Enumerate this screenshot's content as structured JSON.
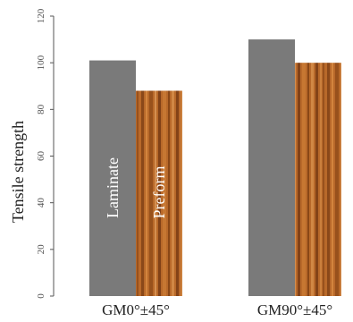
{
  "chart_data": {
    "type": "bar",
    "categories": [
      "GM0°±45°",
      "GM90°±45°"
    ],
    "series": [
      {
        "name": "Laminate",
        "values": [
          101,
          110
        ],
        "color": "#7a7a7a"
      },
      {
        "name": "Preform",
        "values": [
          88,
          100
        ],
        "color": "#b86a2c"
      }
    ],
    "xlabel": "",
    "ylabel": "Tensile strength",
    "ylim": [
      0,
      120
    ],
    "yticks": [
      0,
      20,
      40,
      60,
      80,
      100,
      120
    ],
    "grid": false,
    "legend": "none (series names printed inside first pair of bars)"
  }
}
